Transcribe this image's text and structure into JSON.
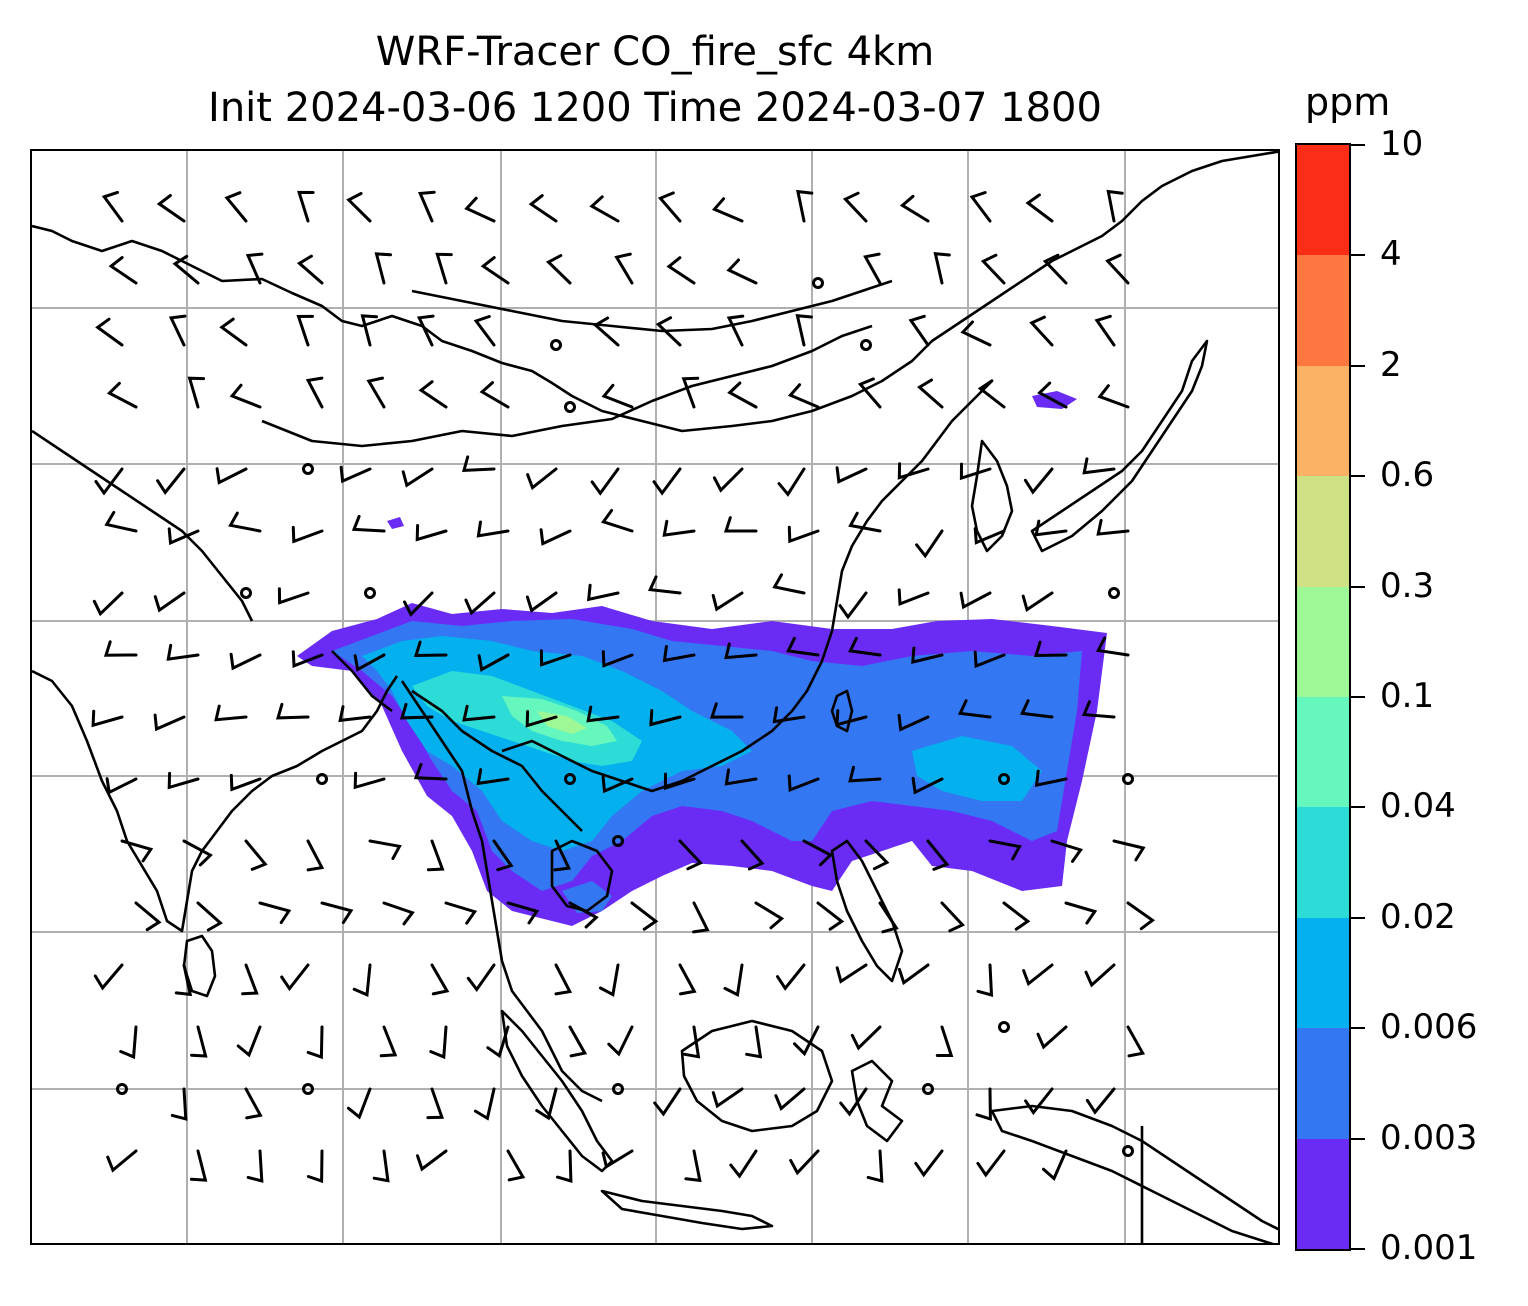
{
  "title_line1": "WRF-Tracer CO_fire_sfc 4km",
  "title_line2": "Init 2024-03-06 1200 Time 2024-03-07 1800",
  "colorbar": {
    "unit": "ppm",
    "levels": [
      "0.001",
      "0.003",
      "0.006",
      "0.02",
      "0.04",
      "0.1",
      "0.3",
      "0.6",
      "2",
      "4",
      "10"
    ],
    "colors": [
      "#6a2cf5",
      "#3377f2",
      "#05b0ee",
      "#2ddcd7",
      "#65f7bd",
      "#9ef896",
      "#cfe185",
      "#fcb264",
      "#fc7840",
      "#fc2d17"
    ]
  },
  "map": {
    "gridlines": true,
    "coastline_color": "#000000",
    "gridline_color": "#b0b0b0",
    "features": [
      "coastlines",
      "country-borders",
      "wind-barbs",
      "fire-co-tracer-plume"
    ]
  }
}
